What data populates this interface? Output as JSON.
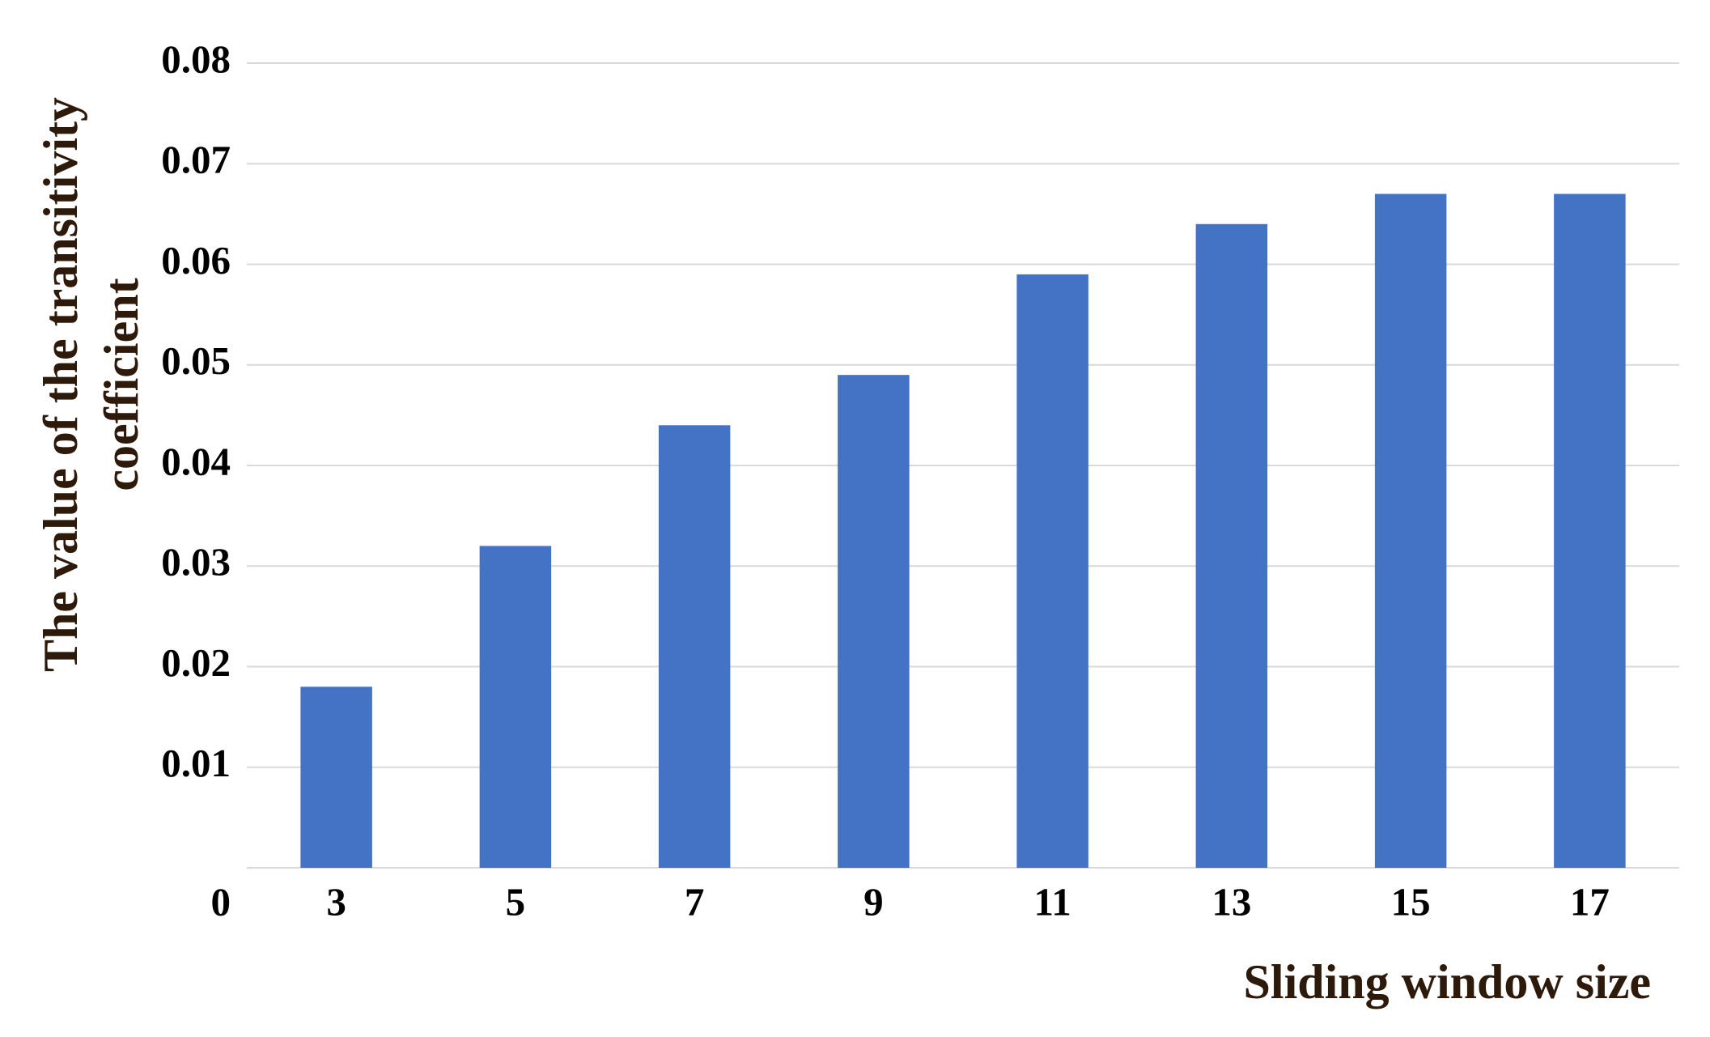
{
  "chart_data": {
    "type": "bar",
    "ylabel": [
      "The value of the transitivity",
      "coefficient"
    ],
    "xlabel": "Sliding window size",
    "categories": [
      "3",
      "5",
      "7",
      "9",
      "11",
      "13",
      "15",
      "17"
    ],
    "values": [
      0.018,
      0.032,
      0.044,
      0.049,
      0.059,
      0.064,
      0.067,
      0.067
    ],
    "color": "#4472c4",
    "ylim": [
      0,
      0.08
    ],
    "yticks": [
      0,
      0.01,
      0.02,
      0.03,
      0.04,
      0.05,
      0.06,
      0.07,
      0.08
    ],
    "grid": true
  }
}
